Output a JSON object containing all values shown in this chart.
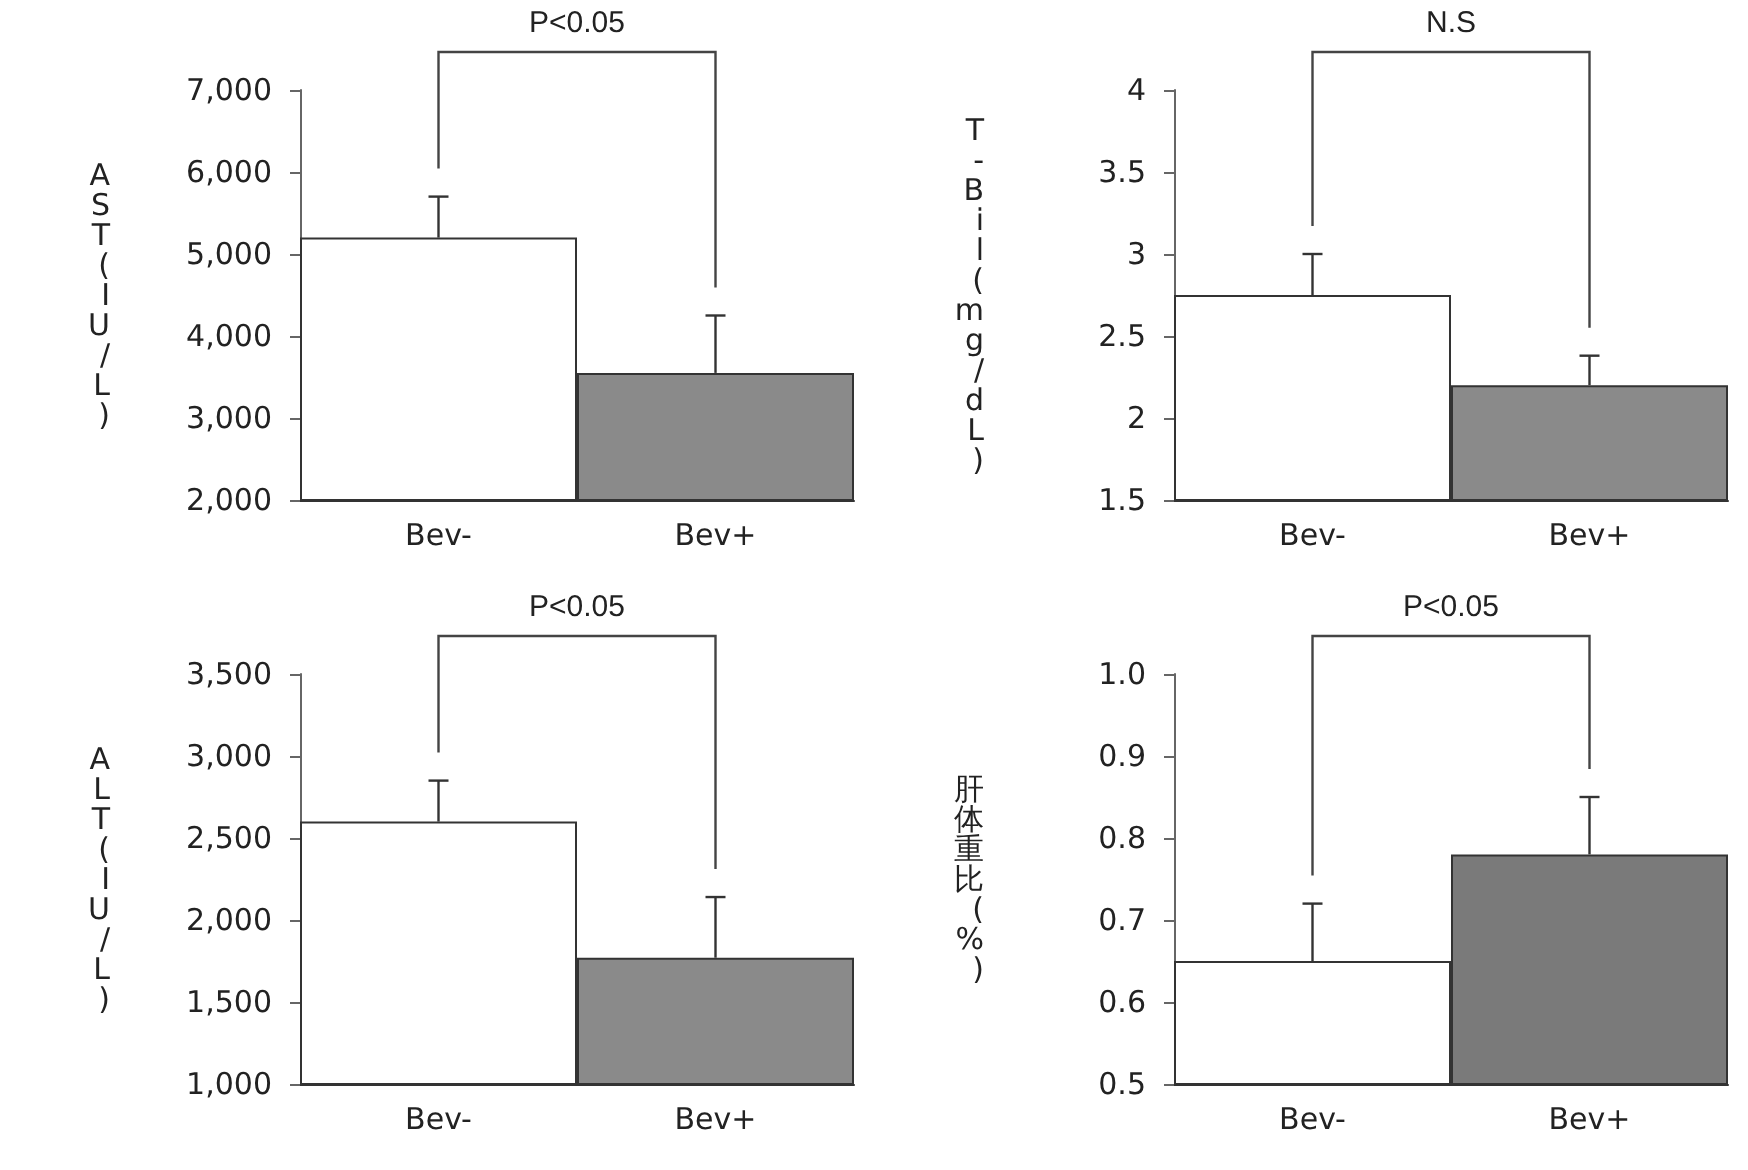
{
  "chart_data": [
    {
      "type": "bar",
      "ylabel": "AST(IU/L)",
      "categories": [
        "Bev-",
        "Bev+"
      ],
      "values": [
        5200,
        3550
      ],
      "colors": [
        "#ffffff",
        "#8a8a8a"
      ],
      "errors": [
        [
          5200,
          5700
        ],
        [
          3550,
          4250
        ]
      ],
      "ylim": [
        2000,
        7000
      ],
      "yticks": [
        {
          "value": 2000,
          "label": "2,000"
        },
        {
          "value": 3000,
          "label": "3,000"
        },
        {
          "value": 4000,
          "label": "4,000"
        },
        {
          "value": 5000,
          "label": "5,000"
        },
        {
          "value": 6000,
          "label": "6,000"
        },
        {
          "value": 7000,
          "label": "7,000"
        }
      ],
      "annotations": [
        "P<0.05"
      ]
    },
    {
      "type": "bar",
      "ylabel": "T-Bil(mg/dL)",
      "categories": [
        "Bev-",
        "Bev+"
      ],
      "values": [
        2.75,
        2.2
      ],
      "colors": [
        "#ffffff",
        "#8a8a8a"
      ],
      "errors": [
        [
          2.75,
          3.0
        ],
        [
          2.2,
          2.38
        ]
      ],
      "ylim": [
        1.5,
        4
      ],
      "yticks": [
        1.5,
        2,
        2.5,
        3,
        3.5,
        4
      ],
      "annotations": [
        "N.S"
      ]
    },
    {
      "type": "bar",
      "ylabel": "ALT(IU/L)",
      "categories": [
        "Bev-",
        "Bev+"
      ],
      "values": [
        2600,
        1770
      ],
      "colors": [
        "#ffffff",
        "#8a8a8a"
      ],
      "errors": [
        [
          2600,
          2850
        ],
        [
          1770,
          2140
        ]
      ],
      "ylim": [
        1000,
        3500
      ],
      "yticks": [
        {
          "value": 1000,
          "label": "1,000"
        },
        {
          "value": 1500,
          "label": "1,500"
        },
        {
          "value": 2000,
          "label": "2,000"
        },
        {
          "value": 2500,
          "label": "2,500"
        },
        {
          "value": 3000,
          "label": "3,000"
        },
        {
          "value": 3500,
          "label": "3,500"
        }
      ],
      "annotations": [
        "P<0.05"
      ]
    },
    {
      "type": "bar",
      "ylabel": "肝体重比(%)",
      "categories": [
        "Bev-",
        "Bev+"
      ],
      "values": [
        0.65,
        0.78
      ],
      "colors": [
        "#ffffff",
        "#7a7a7a"
      ],
      "errors": [
        [
          0.65,
          0.72
        ],
        [
          0.78,
          0.85
        ]
      ],
      "ylim": [
        0.5,
        1
      ],
      "yticks": [
        0.5,
        0.6,
        0.7,
        0.8,
        0.9,
        {
          "value": 1,
          "label": "1.0"
        }
      ],
      "annotations": [
        "P<0.05"
      ]
    }
  ]
}
